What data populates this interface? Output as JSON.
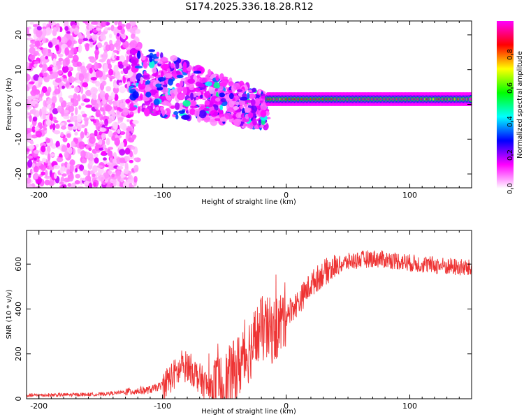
{
  "title": "S174.2025.336.18.28.R12",
  "chart_data": [
    {
      "type": "heatmap",
      "name": "spectrogram",
      "xlabel": "Height of straight line (km)",
      "ylabel": "Frequency (Hz)",
      "xlim": [
        -210,
        150
      ],
      "ylim": [
        -24,
        24
      ],
      "xticks": [
        -200,
        -100,
        0,
        100
      ],
      "xtick_labels": [
        "-200",
        "-100",
        "0",
        "100"
      ],
      "yticks": [
        -20,
        -10,
        0,
        10,
        20
      ],
      "ytick_labels": [
        "-20",
        "-10",
        "0",
        "10",
        "20"
      ],
      "colorbar": {
        "label": "Normalized spectral amplitude",
        "range": [
          0,
          1
        ],
        "ticks": [
          0.0,
          0.2,
          0.4,
          0.6,
          0.8
        ],
        "tick_labels": [
          "0.0",
          "0.2",
          "0.4",
          "0.6",
          "0.8"
        ],
        "colors": [
          "#ffffff",
          "#ff00ff",
          "#0000ff",
          "#00ffff",
          "#00ff00",
          "#ffff00",
          "#ff0000",
          "#ff00ff"
        ]
      },
      "carrier": {
        "frequency_hz": 1.5,
        "x_start_km": -15,
        "x_end_km": 150,
        "peak_amplitude": 1.0
      }
    },
    {
      "type": "line",
      "name": "snr",
      "xlabel": "Height of straight line (km)",
      "ylabel": "SNR (10 * v/v)",
      "xlim": [
        -210,
        150
      ],
      "ylim": [
        0,
        750
      ],
      "xticks": [
        -200,
        -100,
        0,
        100
      ],
      "xtick_labels": [
        "-200",
        "-100",
        "0",
        "100"
      ],
      "yticks": [
        0,
        200,
        400,
        600
      ],
      "ytick_labels": [
        "0",
        "200",
        "400",
        "600"
      ],
      "color": "#ee3333",
      "series": [
        {
          "name": "SNR",
          "x": [
            -210,
            -150,
            -130,
            -110,
            -100,
            -90,
            -80,
            -70,
            -60,
            -50,
            -40,
            -30,
            -20,
            -10,
            -5,
            0,
            10,
            20,
            30,
            40,
            50,
            60,
            70,
            80,
            90,
            100,
            110,
            120,
            130,
            140,
            150
          ],
          "y": [
            15,
            20,
            30,
            40,
            60,
            110,
            150,
            90,
            35,
            60,
            130,
            220,
            310,
            300,
            330,
            380,
            430,
            510,
            560,
            590,
            610,
            620,
            625,
            620,
            615,
            605,
            600,
            595,
            590,
            585,
            580
          ]
        }
      ]
    }
  ]
}
